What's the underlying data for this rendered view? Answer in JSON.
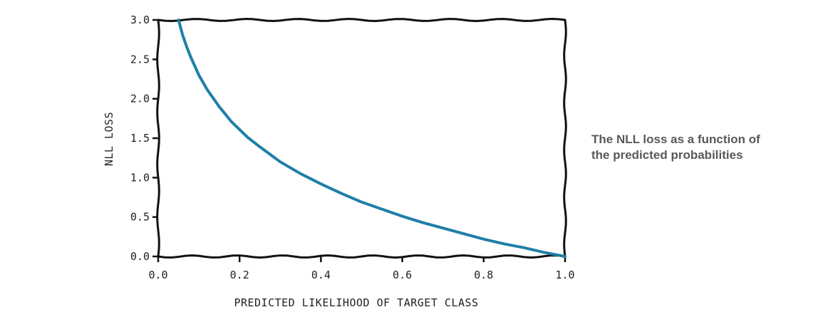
{
  "caption": {
    "line1": "The NLL loss as a function of",
    "line2": "the predicted probabilities"
  },
  "chart_data": {
    "type": "line",
    "xlabel": "PREDICTED LIKELIHOOD OF TARGET CLASS",
    "ylabel": "NLL LOSS",
    "xlim": [
      0.0,
      1.0
    ],
    "ylim": [
      0.0,
      3.0
    ],
    "x_ticks": [
      "0.0",
      "0.2",
      "0.4",
      "0.6",
      "0.8",
      "1.0"
    ],
    "y_ticks": [
      "0.0",
      "0.5",
      "1.0",
      "1.5",
      "2.0",
      "2.5",
      "3.0"
    ],
    "grid": false,
    "line_color": "#1f7fa8",
    "series": [
      {
        "x": [
          0.05,
          0.06,
          0.07,
          0.08,
          0.1,
          0.12,
          0.15,
          0.18,
          0.2,
          0.22,
          0.25,
          0.3,
          0.35,
          0.4,
          0.45,
          0.5,
          0.55,
          0.6,
          0.65,
          0.7,
          0.75,
          0.8,
          0.85,
          0.9,
          0.95,
          1.0
        ],
        "y": [
          3.0,
          2.81,
          2.66,
          2.53,
          2.3,
          2.12,
          1.9,
          1.71,
          1.61,
          1.51,
          1.39,
          1.2,
          1.05,
          0.92,
          0.8,
          0.69,
          0.6,
          0.51,
          0.43,
          0.36,
          0.29,
          0.22,
          0.16,
          0.11,
          0.05,
          0.0
        ]
      }
    ]
  }
}
